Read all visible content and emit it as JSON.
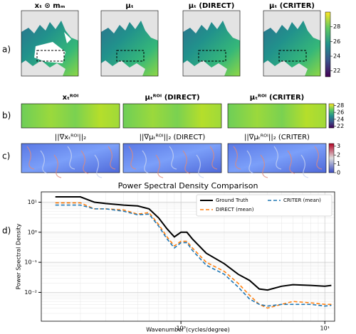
{
  "figure": {
    "panel_labels": [
      "a)",
      "b)",
      "c)",
      "d)"
    ],
    "maps": {
      "titles": [
        "xₜ ⊙ mₘ",
        "μₜ",
        "μₜ (DIRECT)",
        "μₜ (CRITER)"
      ],
      "colorbar": {
        "lim": [
          21.2,
          30
        ],
        "ticks": [
          22,
          24,
          26,
          28
        ]
      }
    },
    "roi": {
      "titles": [
        "xₜᴿᴼᴵ",
        "μₜᴿᴼᴵ (DIRECT)",
        "μₜᴿᴼᴵ (CRITER)"
      ],
      "colorbar": {
        "lim": [
          21.5,
          28.5
        ],
        "ticks": [
          22,
          24,
          26,
          28
        ]
      }
    },
    "gradient": {
      "titles": [
        "||∇xₜᴿᴼᴵ||₂",
        "||∇μₜᴿᴼᴵ||₂ (DIRECT)",
        "||∇μₜᴿᴼᴵ||₂ (CRITER)"
      ],
      "colorbar": {
        "lim": [
          0,
          3.3
        ],
        "ticks": [
          0,
          1,
          2,
          3
        ]
      }
    }
  },
  "chart_data": {
    "type": "line",
    "title": "Power Spectral Density Comparison",
    "x_label": "Wavenumber (cycles/degree)",
    "y_label": "Power Spectral Density",
    "log_x": true,
    "log_y": true,
    "grid": true,
    "legend": "upper right",
    "x": [
      0.134,
      0.18,
      0.2,
      0.25,
      0.3,
      0.4,
      0.5,
      0.6,
      0.7,
      0.8,
      0.9,
      1.0,
      1.1,
      1.2,
      1.5,
      2,
      2.5,
      3,
      3.5,
      4,
      5,
      6,
      8,
      10,
      11.1
    ],
    "series": [
      {
        "name": "Ground Truth",
        "color": "#000000",
        "dash": false,
        "values": [
          15,
          15,
          15,
          10,
          9,
          8,
          7.5,
          6,
          3,
          1.3,
          0.7,
          1.0,
          1.0,
          0.6,
          0.2,
          0.09,
          0.04,
          0.025,
          0.013,
          0.012,
          0.016,
          0.018,
          0.017,
          0.016,
          0.017
        ]
      },
      {
        "name": "DIRECT (mean)",
        "color": "#ff7f0e",
        "dash": true,
        "values": [
          9.5,
          9.5,
          9.5,
          6,
          6,
          5.5,
          4,
          4.5,
          1.8,
          0.7,
          0.35,
          0.5,
          0.5,
          0.3,
          0.1,
          0.05,
          0.02,
          0.008,
          0.004,
          0.003,
          0.004,
          0.005,
          0.0045,
          0.004,
          0.004
        ]
      },
      {
        "name": "CRITER (mean)",
        "color": "#1f77b4",
        "dash": true,
        "values": [
          8,
          8,
          8,
          6,
          6,
          5,
          3.8,
          4,
          1.6,
          0.6,
          0.3,
          0.45,
          0.45,
          0.25,
          0.08,
          0.04,
          0.015,
          0.006,
          0.004,
          0.0035,
          0.004,
          0.004,
          0.004,
          0.0035,
          0.0037
        ]
      }
    ],
    "xlim": [
      0.107,
      11.7
    ],
    "ylim": [
      0.0011,
      22
    ],
    "xticks": [
      {
        "value": 1,
        "label": "10⁰"
      },
      {
        "value": 10,
        "label": "10¹"
      }
    ],
    "yticks": [
      {
        "value": 0.01,
        "label": "10⁻²"
      },
      {
        "value": 0.1,
        "label": "10⁻¹"
      },
      {
        "value": 1,
        "label": "10⁰"
      },
      {
        "value": 10,
        "label": "10¹"
      }
    ]
  }
}
